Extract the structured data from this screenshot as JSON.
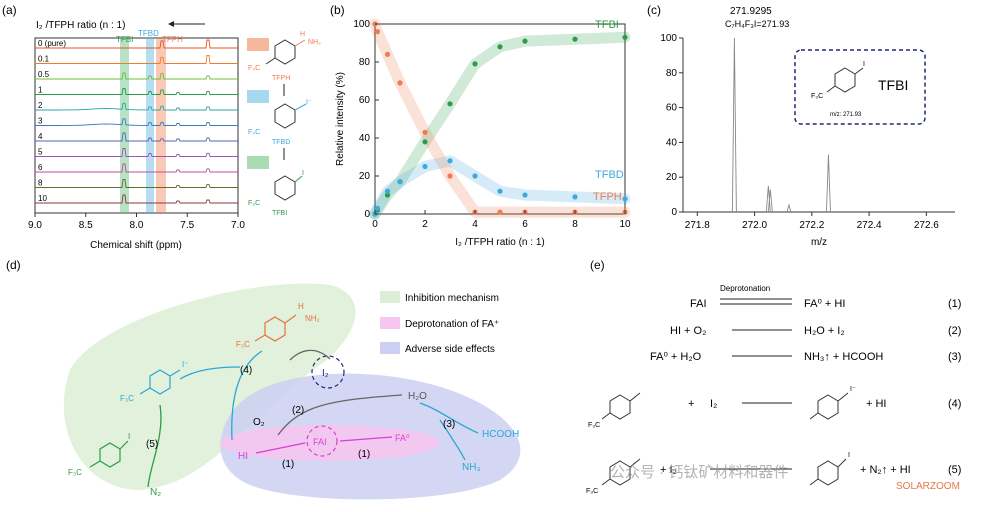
{
  "panel_labels": {
    "a": "(a)",
    "b": "(b)",
    "c": "(c)",
    "d": "(d)",
    "e": "(e)"
  },
  "nmr": {
    "ratio_label": "I₂ /TFPH ratio (n : 1)",
    "rows": [
      "0  (pure)",
      "0.1",
      "0.5",
      "1",
      "2",
      "3",
      "4",
      "5",
      "6",
      "8",
      "10"
    ],
    "band_labels": {
      "tfbi": "TFBI",
      "tfbd": "TFBD",
      "tfph": "TFPH"
    },
    "x_ticks": [
      "9.0",
      "8.5",
      "8.0",
      "7.5",
      "7.0"
    ],
    "xlabel": "Chemical shift (ppm)",
    "structures": {
      "tfph": "TFPH",
      "tfbd": "TFBD",
      "tfbi": "TFBI",
      "cf3": "F₃C",
      "nh": "H",
      "nh2": "NH₂",
      "iminus": "I⁻",
      "iodo": "I"
    },
    "colors": {
      "tfbi": "#5fbf7a",
      "tfbd": "#5bb5e0",
      "tfph": "#f08a5a"
    }
  },
  "chart_data": {
    "type": "scatter",
    "xlabel": "I₂ /TFPH ratio (n : 1)",
    "ylabel": "Relative intensity (%)",
    "xlim": [
      0,
      10
    ],
    "ylim": [
      0,
      100
    ],
    "x_ticks": [
      0,
      2,
      4,
      6,
      8,
      10
    ],
    "y_ticks": [
      0,
      20,
      40,
      60,
      80,
      100
    ],
    "series": [
      {
        "name": "TFBI",
        "color": "#2f9b4a",
        "x": [
          0,
          0.1,
          0.5,
          1,
          2,
          3,
          4,
          5,
          6,
          8,
          10
        ],
        "y": [
          0,
          2,
          10,
          17,
          38,
          58,
          79,
          88,
          91,
          92,
          93
        ]
      },
      {
        "name": "TFBD",
        "color": "#3fa8dd",
        "x": [
          0,
          0.1,
          0.5,
          1,
          2,
          3,
          4,
          5,
          6,
          8,
          10
        ],
        "y": [
          0,
          3,
          12,
          17,
          25,
          28,
          20,
          12,
          10,
          9,
          8
        ]
      },
      {
        "name": "TFPH",
        "color": "#ef7b52",
        "x": [
          0,
          0.1,
          0.5,
          1,
          2,
          3,
          4,
          5,
          6,
          8,
          10
        ],
        "y": [
          100,
          96,
          84,
          69,
          43,
          20,
          1,
          1,
          1,
          1,
          1
        ]
      }
    ]
  },
  "ms": {
    "peak_label": "271.9295",
    "formula": "C₇H₄F₃I=271.93",
    "x_ticks": [
      "271.8",
      "272.0",
      "272.2",
      "272.4",
      "272.6"
    ],
    "y_ticks": [
      "0",
      "20",
      "40",
      "60",
      "80",
      "100"
    ],
    "xlabel": "m/z",
    "box_label": "TFBI",
    "box_cf3": "F₃C",
    "box_iodo": "I",
    "box_mz": "m/z: 271.93"
  },
  "diagram": {
    "legend": [
      "Inhibition mechanism",
      "Deprotonation of FA⁺",
      "Adverse side effects"
    ],
    "legend_colors": [
      "#dcefd6",
      "#f6c6f0",
      "#cdd0f2"
    ],
    "labels": {
      "i2": "I₂",
      "o2": "O₂",
      "h2o": "H₂O",
      "hcooh": "HCOOH",
      "nh3": "NH₃",
      "hi": "HI",
      "fai": "FAI",
      "fa0": "FA⁰",
      "n2": "N₂",
      "cf3": "F₃C",
      "iodo": "I",
      "nh": "H",
      "nh2": "NH₂",
      "iminus": "I⁻"
    },
    "steps": [
      "(4)",
      "(2)",
      "(3)",
      "(5)",
      "(1)",
      "(1)"
    ]
  },
  "equations": {
    "eq1": {
      "left": "FAI",
      "over": "Deprotonation",
      "right": "FA⁰  +  HI",
      "num": "(1)"
    },
    "eq2": {
      "left": "HI  + O₂",
      "right": "H₂O  +  I₂",
      "num": "(2)"
    },
    "eq3": {
      "left": "FA⁰  +  H₂O",
      "right": "NH₃↑ +  HCOOH",
      "num": "(3)"
    },
    "eq4": {
      "plus": "+",
      "i2": "I₂",
      "right": "+    HI",
      "num": "(4)",
      "cf3": "F₃C",
      "iminus": "I⁻"
    },
    "eq5": {
      "plus": "+",
      "i2": "+ I₂",
      "right": "+  N₂↑  +  HI",
      "num": "(5)",
      "cf3": "F₃C",
      "iodo": "I"
    }
  },
  "watermark": {
    "text": "公众号 · 钙钛矿材料和器件",
    "site": "SOLARZOOM"
  }
}
